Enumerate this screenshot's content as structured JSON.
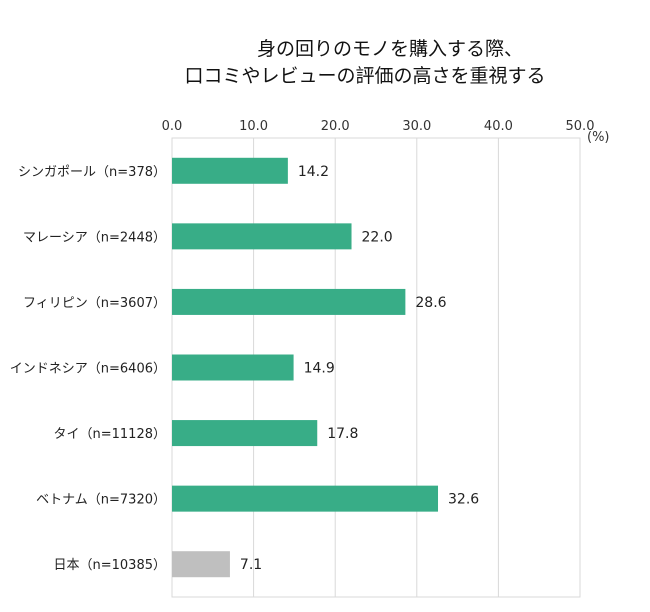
{
  "chart_data": {
    "type": "bar",
    "orientation": "horizontal",
    "title_lines": [
      "身の回りのモノを購入する際、",
      "口コミやレビューの評価の高さを重視する"
    ],
    "unit_label": "(%)",
    "xlim": [
      0,
      50
    ],
    "ticks": [
      "0.0",
      "10.0",
      "20.0",
      "30.0",
      "40.0",
      "50.0"
    ],
    "tick_values": [
      0,
      10,
      20,
      30,
      40,
      50
    ],
    "grid": true,
    "categories": [
      "シンガポール（n=378）",
      "マレーシア（n=2448）",
      "フィリピン（n=3607）",
      "インドネシア（n=6406）",
      "タイ（n=11128）",
      "ベトナム（n=7320）",
      "日本（n=10385）"
    ],
    "values": [
      14.2,
      22.0,
      28.6,
      14.9,
      17.8,
      32.6,
      7.1
    ],
    "value_labels": [
      "14.2",
      "22.0",
      "28.6",
      "14.9",
      "17.8",
      "32.6",
      "7.1"
    ],
    "colors": [
      "#38ad87",
      "#38ad87",
      "#38ad87",
      "#38ad87",
      "#38ad87",
      "#38ad87",
      "#bfbfbf"
    ],
    "grid_color": "#d9d9d9"
  }
}
